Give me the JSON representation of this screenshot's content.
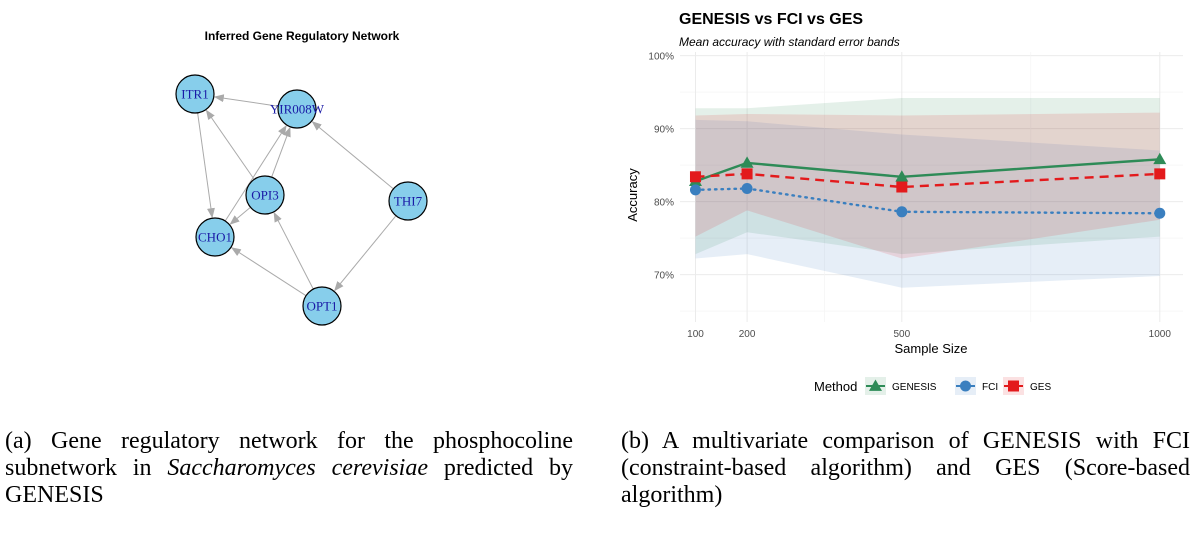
{
  "network": {
    "title": "Inferred Gene Regulatory Network",
    "node_fill": "#87ceeb",
    "label_color": "#1a1aa6",
    "nodes": [
      "ITR1",
      "YIR008W",
      "OPI3",
      "THI7",
      "CHO1",
      "OPT1"
    ],
    "edges": [
      {
        "from": "YIR008W",
        "to": "ITR1"
      },
      {
        "from": "ITR1",
        "to": "CHO1"
      },
      {
        "from": "OPI3",
        "to": "ITR1"
      },
      {
        "from": "OPI3",
        "to": "YIR008W"
      },
      {
        "from": "CHO1",
        "to": "YIR008W"
      },
      {
        "from": "OPI3",
        "to": "CHO1"
      },
      {
        "from": "THI7",
        "to": "YIR008W"
      },
      {
        "from": "THI7",
        "to": "OPT1"
      },
      {
        "from": "OPT1",
        "to": "OPI3"
      },
      {
        "from": "OPT1",
        "to": "CHO1"
      }
    ]
  },
  "chart_data": {
    "type": "line",
    "title": "GENESIS vs FCI vs GES",
    "subtitle": "Mean accuracy with standard error bands",
    "xlabel": "Sample Size",
    "ylabel": "Accuracy",
    "x": [
      100,
      200,
      500,
      1000
    ],
    "x_ticks": [
      "100",
      "200",
      "500",
      "1000"
    ],
    "ylim": [
      0.635,
      1.005
    ],
    "y_ticks": [
      0.7,
      0.8,
      0.9,
      1.0
    ],
    "y_tick_labels": [
      "70%",
      "80%",
      "90%",
      "100%"
    ],
    "legend_title": "Method",
    "legend_position": "bottom",
    "series": [
      {
        "name": "GENESIS",
        "color": "#2e8b57",
        "marker": "triangle",
        "dash": "solid",
        "values": [
          0.828,
          0.853,
          0.834,
          0.858
        ],
        "lower": [
          0.728,
          0.758,
          0.728,
          0.752
        ],
        "upper": [
          0.928,
          0.928,
          0.942,
          0.942
        ]
      },
      {
        "name": "FCI",
        "color": "#3a7fbf",
        "marker": "circle",
        "dash": "dotted",
        "values": [
          0.816,
          0.818,
          0.786,
          0.784
        ],
        "lower": [
          0.722,
          0.728,
          0.682,
          0.698
        ],
        "upper": [
          0.912,
          0.91,
          0.892,
          0.87
        ]
      },
      {
        "name": "GES",
        "color": "#e31a1c",
        "marker": "square",
        "dash": "dashed",
        "values": [
          0.834,
          0.838,
          0.82,
          0.838
        ],
        "lower": [
          0.752,
          0.788,
          0.722,
          0.775
        ],
        "upper": [
          0.918,
          0.92,
          0.918,
          0.922
        ]
      }
    ]
  },
  "captions": {
    "left": {
      "label": "(a) Gene regulatory network for the phosphocoline subnetwork in ",
      "italic": "Saccharomyces cerevisiae",
      "tail": " predicted by GENESIS"
    },
    "right": {
      "text": "(b) A multivariate comparison of GENESIS with FCI (constraint-based algorithm) and GES (Score-based algorithm)"
    }
  }
}
